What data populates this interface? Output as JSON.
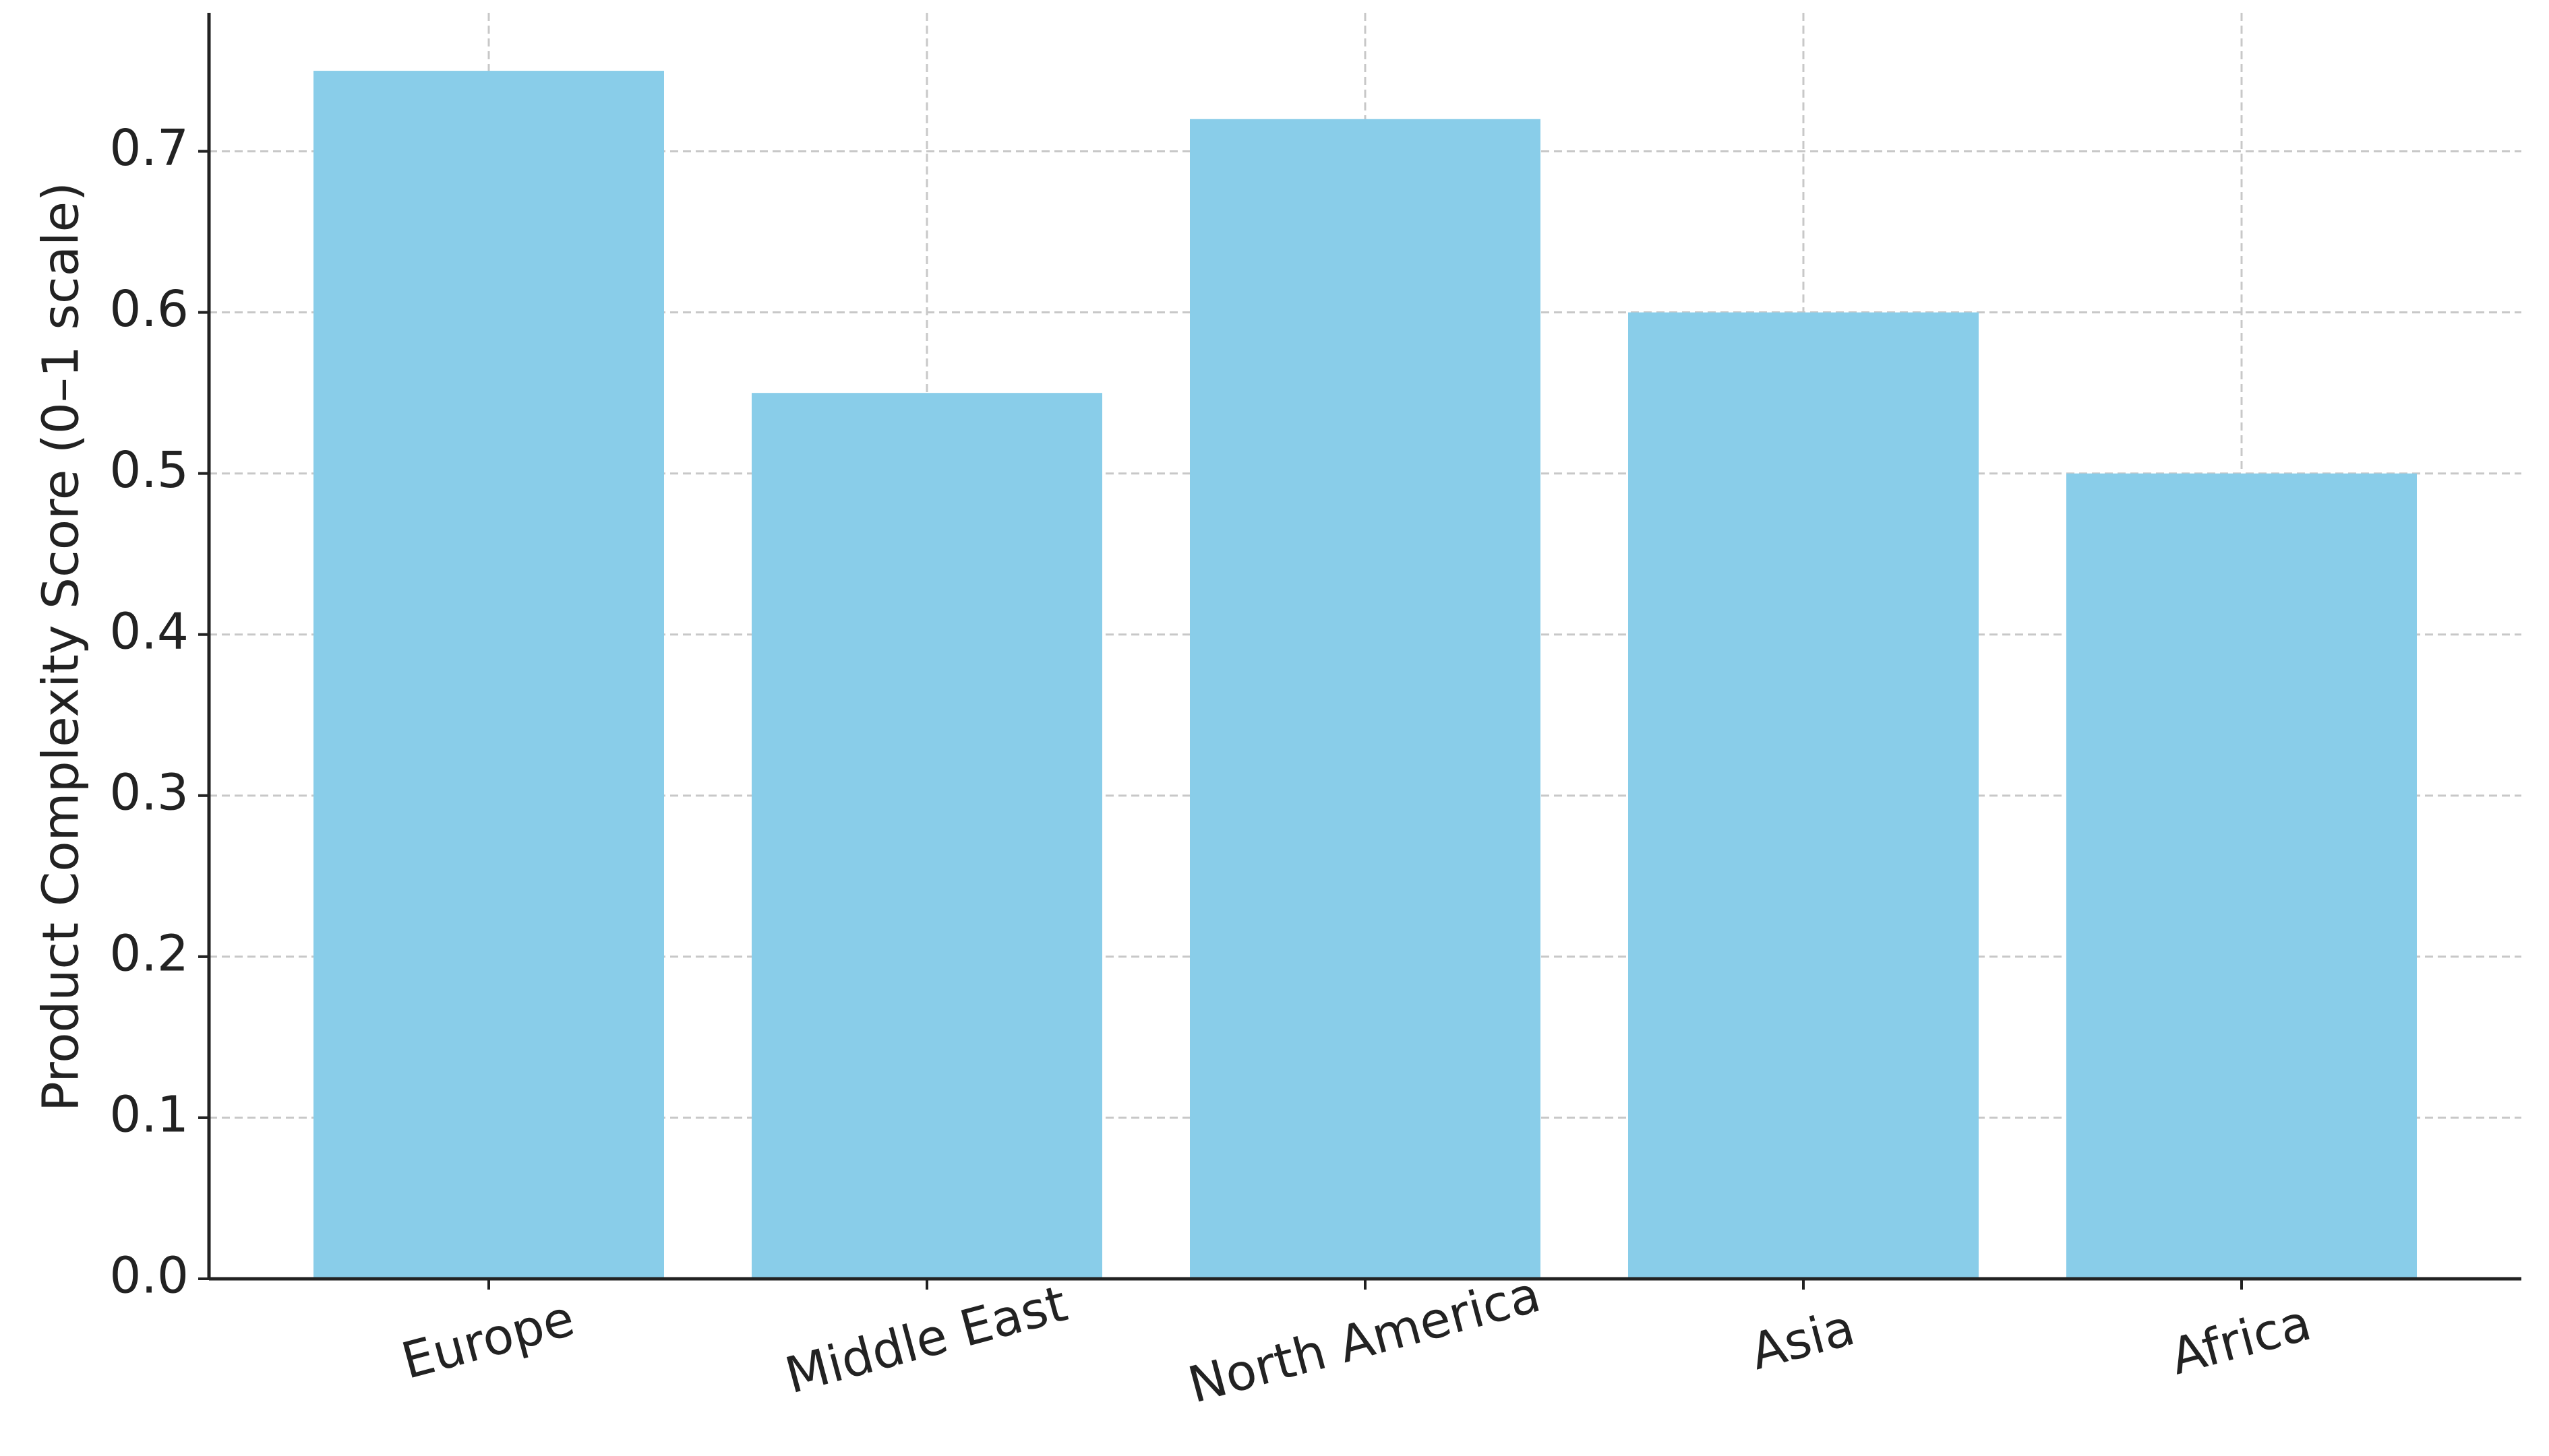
{
  "chart_data": {
    "type": "bar",
    "y_label": "Product Complexity Score (0–1 scale)",
    "categories": [
      "Europe",
      "Middle East",
      "North America",
      "Asia",
      "Africa"
    ],
    "values": [
      0.75,
      0.55,
      0.72,
      0.6,
      0.5
    ],
    "color": "#89cde9",
    "ylim": [
      0,
      0.786
    ],
    "yticks": [
      {
        "value": 0,
        "label": "0.0"
      },
      0.1,
      0.2,
      0.3,
      0.4,
      0.5,
      0.6,
      0.7
    ],
    "grid": true
  }
}
